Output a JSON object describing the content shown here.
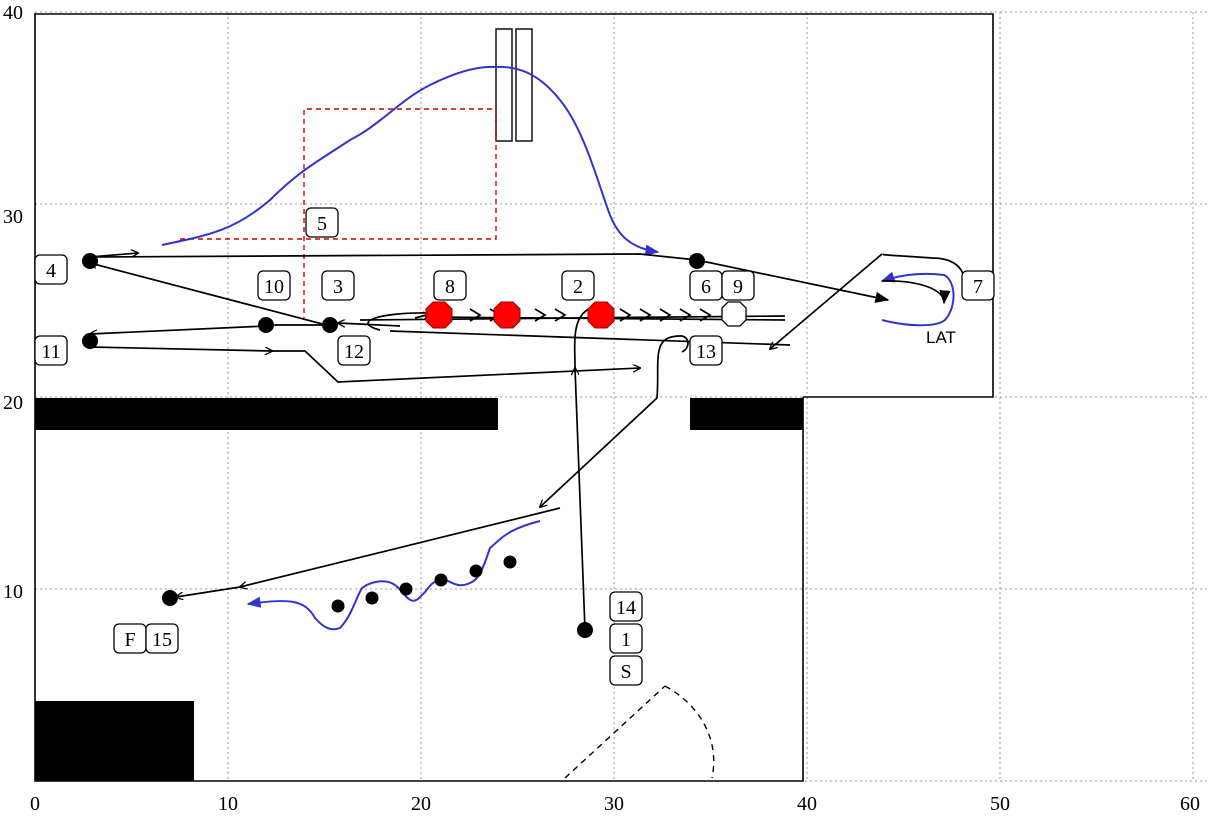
{
  "diagram": {
    "x_ticks": [
      "0",
      "10",
      "20",
      "30",
      "40",
      "50",
      "60"
    ],
    "y_ticks": [
      "40",
      "30",
      "20",
      "10"
    ],
    "stations": [
      {
        "id": "1",
        "label": "1"
      },
      {
        "id": "2",
        "label": "2"
      },
      {
        "id": "3",
        "label": "3"
      },
      {
        "id": "4",
        "label": "4"
      },
      {
        "id": "5",
        "label": "5"
      },
      {
        "id": "6",
        "label": "6"
      },
      {
        "id": "7",
        "label": "7"
      },
      {
        "id": "8",
        "label": "8"
      },
      {
        "id": "9",
        "label": "9"
      },
      {
        "id": "10",
        "label": "10"
      },
      {
        "id": "11",
        "label": "11"
      },
      {
        "id": "12",
        "label": "12"
      },
      {
        "id": "13",
        "label": "13"
      },
      {
        "id": "14",
        "label": "14"
      },
      {
        "id": "15",
        "label": "15"
      },
      {
        "id": "S",
        "label": "S"
      },
      {
        "id": "F",
        "label": "F"
      }
    ],
    "annotation": "LAT",
    "colors": {
      "path": "#000000",
      "curve": "#3333cc",
      "dashed_box": "#cc0000",
      "cone": "#ff0000",
      "grid": "#9a9a9a",
      "wall": "#000000"
    }
  }
}
